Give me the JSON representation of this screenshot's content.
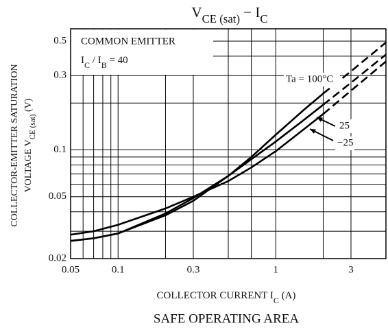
{
  "chart_data": {
    "type": "line",
    "title": [
      "V",
      "CE (sat)",
      " − I",
      "C"
    ],
    "ylabel_line1": "COLLECTOR-EMITTER SATURATION",
    "ylabel_line2": [
      "VOLTAGE  V",
      "CE (sat)",
      "   (V)"
    ],
    "xlabel": [
      "COLLECTOR CURRENT   I",
      "C",
      "   (A)"
    ],
    "annotation_line1": "COMMON EMITTER",
    "annotation_line2": [
      "I",
      "C",
      " / I",
      "B",
      " = 40"
    ],
    "x": [
      0.05,
      0.07,
      0.1,
      0.2,
      0.3,
      0.5,
      0.7,
      1,
      1.5,
      2,
      3,
      5
    ],
    "series": [
      {
        "name": "Ta = 100°C",
        "color": "#000000",
        "values": [
          0.026,
          0.027,
          0.029,
          0.038,
          0.047,
          0.068,
          0.09,
          0.125,
          0.18,
          0.23,
          0.32,
          0.49
        ]
      },
      {
        "name": "25",
        "color": "#000000",
        "values": [
          0.026,
          0.027,
          0.029,
          0.039,
          0.049,
          0.068,
          0.087,
          0.113,
          0.155,
          0.195,
          0.27,
          0.41
        ]
      },
      {
        "name": "−25",
        "color": "#000000",
        "values": [
          0.0285,
          0.03,
          0.033,
          0.042,
          0.05,
          0.063,
          0.077,
          0.098,
          0.135,
          0.17,
          0.24,
          0.37
        ]
      }
    ],
    "dashed_from_x": 2.3,
    "log_x": true,
    "log_y": true,
    "xlim": [
      0.05,
      5
    ],
    "ylim": [
      0.02,
      0.6
    ],
    "xticks": [
      0.05,
      0.1,
      0.3,
      1,
      3
    ],
    "yticks": [
      0.02,
      0.05,
      0.1,
      0.3,
      0.5
    ],
    "minor_xgrid": [
      0.06,
      0.07,
      0.08,
      0.09,
      0.2,
      0.5,
      0.7,
      2
    ],
    "minor_ygrid": [
      0.03,
      0.04,
      0.06,
      0.07,
      0.08,
      0.09,
      0.2,
      0.4
    ],
    "grid": true
  },
  "footer": "SAFE OPERATING AREA"
}
